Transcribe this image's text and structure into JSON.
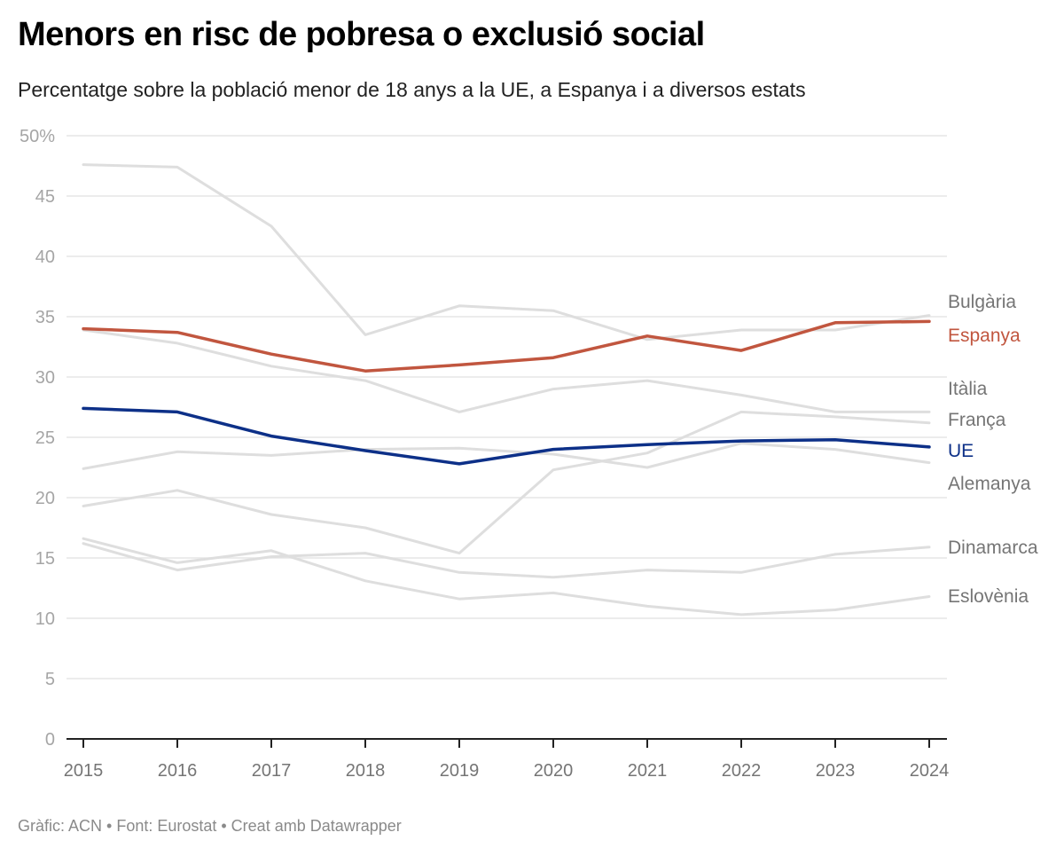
{
  "header": {
    "title": "Menors en risc de pobresa o exclusió social",
    "subtitle": "Percentatge sobre la població menor de 18 anys a la UE, a Espanya i a diversos estats"
  },
  "footer": {
    "text": "Gràfic: ACN • Font: Eurostat • Creat amb Datawrapper"
  },
  "chart_data": {
    "type": "line",
    "title": "Menors en risc de pobresa o exclusió social",
    "subtitle": "Percentatge sobre la població menor de 18 anys a la UE, a Espanya i a diversos estats",
    "xlabel": "",
    "ylabel": "",
    "x": [
      "2015",
      "2016",
      "2017",
      "2018",
      "2019",
      "2020",
      "2021",
      "2022",
      "2023",
      "2024"
    ],
    "ylim": [
      0,
      50
    ],
    "yticks": [
      0,
      5,
      10,
      15,
      20,
      25,
      30,
      35,
      40,
      45,
      50
    ],
    "ytick_labels": [
      "0",
      "5",
      "10",
      "15",
      "20",
      "25",
      "30",
      "35",
      "40",
      "45",
      "50%"
    ],
    "grid": true,
    "legend": "direct labels at line ends (right)",
    "series": [
      {
        "name": "Bulgària",
        "highlight": false,
        "color": "#dedede",
        "label_color": "#757575",
        "values": [
          47.6,
          47.4,
          42.5,
          33.5,
          35.9,
          35.5,
          33.1,
          33.9,
          33.9,
          35.1
        ]
      },
      {
        "name": "Itàlia",
        "highlight": false,
        "color": "#dedede",
        "label_color": "#757575",
        "values": [
          33.9,
          32.8,
          30.9,
          29.7,
          27.1,
          29.0,
          29.7,
          28.5,
          27.1,
          27.1
        ]
      },
      {
        "name": "França",
        "highlight": false,
        "color": "#dedede",
        "label_color": "#757575",
        "values": [
          19.3,
          20.6,
          18.6,
          17.5,
          15.4,
          22.3,
          23.7,
          27.1,
          26.7,
          26.2
        ]
      },
      {
        "name": "Alemanya",
        "highlight": false,
        "color": "#dedede",
        "label_color": "#757575",
        "values": [
          22.4,
          23.8,
          23.5,
          24.0,
          24.1,
          23.6,
          22.5,
          24.5,
          24.0,
          22.9
        ]
      },
      {
        "name": "Dinamarca",
        "highlight": false,
        "color": "#dedede",
        "label_color": "#757575",
        "values": [
          16.2,
          14.0,
          15.1,
          15.4,
          13.8,
          13.4,
          14.0,
          13.8,
          15.3,
          15.9
        ]
      },
      {
        "name": "Eslovènia",
        "highlight": false,
        "color": "#dedede",
        "label_color": "#757575",
        "values": [
          16.6,
          14.6,
          15.6,
          13.1,
          11.6,
          12.1,
          11.0,
          10.3,
          10.7,
          11.8
        ]
      },
      {
        "name": "UE",
        "highlight": true,
        "color": "#0d3088",
        "label_color": "#0d3088",
        "values": [
          27.4,
          27.1,
          25.1,
          23.9,
          22.8,
          24.0,
          24.4,
          24.7,
          24.8,
          24.2
        ]
      },
      {
        "name": "Espanya",
        "highlight": true,
        "color": "#c1563f",
        "label_color": "#c1563f",
        "values": [
          34.0,
          33.7,
          31.9,
          30.5,
          31.0,
          31.6,
          33.4,
          32.2,
          34.5,
          34.6
        ]
      }
    ],
    "end_labels_order": [
      "Bulgària",
      "Espanya",
      "Itàlia",
      "França",
      "UE",
      "Alemanya",
      "Dinamarca",
      "Eslovènia"
    ]
  }
}
